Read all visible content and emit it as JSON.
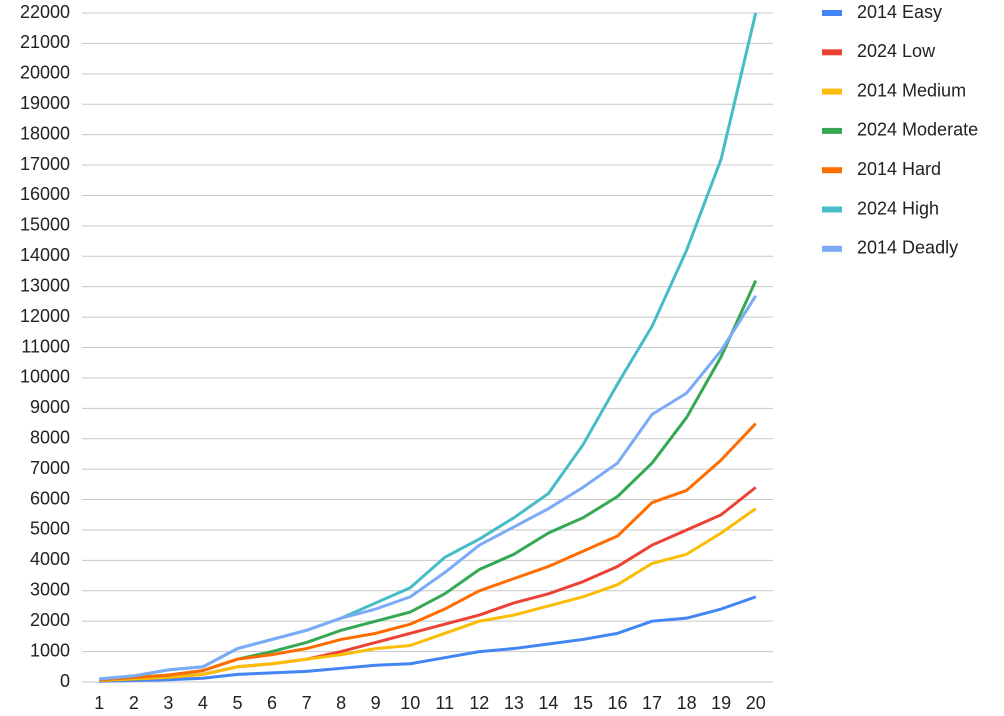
{
  "chart_data": {
    "type": "line",
    "categories": [
      "1",
      "2",
      "3",
      "4",
      "5",
      "6",
      "7",
      "8",
      "9",
      "10",
      "11",
      "12",
      "13",
      "14",
      "15",
      "16",
      "17",
      "18",
      "19",
      "20"
    ],
    "series": [
      {
        "name": "2014 Easy",
        "color": "#4285f4",
        "values": [
          25,
          50,
          75,
          125,
          250,
          300,
          350,
          450,
          550,
          600,
          800,
          1000,
          1100,
          1250,
          1400,
          1600,
          2000,
          2100,
          2400,
          2800
        ]
      },
      {
        "name": "2024 Low",
        "color": "#ea4335",
        "values": [
          50,
          100,
          150,
          250,
          500,
          600,
          750,
          1000,
          1300,
          1600,
          1900,
          2200,
          2600,
          2900,
          3300,
          3800,
          4500,
          5000,
          5500,
          6400
        ]
      },
      {
        "name": "2014 Medium",
        "color": "#fbbc04",
        "values": [
          50,
          100,
          150,
          250,
          500,
          600,
          750,
          900,
          1100,
          1200,
          1600,
          2000,
          2200,
          2500,
          2800,
          3200,
          3900,
          4200,
          4900,
          5700
        ]
      },
      {
        "name": "2024 Moderate",
        "color": "#34a853",
        "values": [
          75,
          150,
          225,
          375,
          750,
          1000,
          1300,
          1700,
          2000,
          2300,
          2900,
          3700,
          4200,
          4900,
          5400,
          6100,
          7200,
          8700,
          10700,
          13200
        ]
      },
      {
        "name": "2014 Hard",
        "color": "#ff6d01",
        "values": [
          75,
          150,
          225,
          375,
          750,
          900,
          1100,
          1400,
          1600,
          1900,
          2400,
          3000,
          3400,
          3800,
          4300,
          4800,
          5900,
          6300,
          7300,
          8500
        ]
      },
      {
        "name": "2024 High",
        "color": "#46bdc6",
        "values": [
          100,
          200,
          400,
          500,
          1100,
          1400,
          1700,
          2100,
          2600,
          3100,
          4100,
          4700,
          5400,
          6200,
          7800,
          9800,
          11700,
          14200,
          17200,
          22000
        ]
      },
      {
        "name": "2014 Deadly",
        "color": "#7baaf7",
        "values": [
          100,
          200,
          400,
          500,
          1100,
          1400,
          1700,
          2100,
          2400,
          2800,
          3600,
          4500,
          5100,
          5700,
          6400,
          7200,
          8800,
          9500,
          10900,
          12700
        ]
      }
    ],
    "ylim": [
      0,
      22000
    ],
    "yticks": [
      0,
      1000,
      2000,
      3000,
      4000,
      5000,
      6000,
      7000,
      8000,
      9000,
      10000,
      11000,
      12000,
      13000,
      14000,
      15000,
      16000,
      17000,
      18000,
      19000,
      20000,
      21000,
      22000
    ],
    "grid": true,
    "legend": "right"
  }
}
